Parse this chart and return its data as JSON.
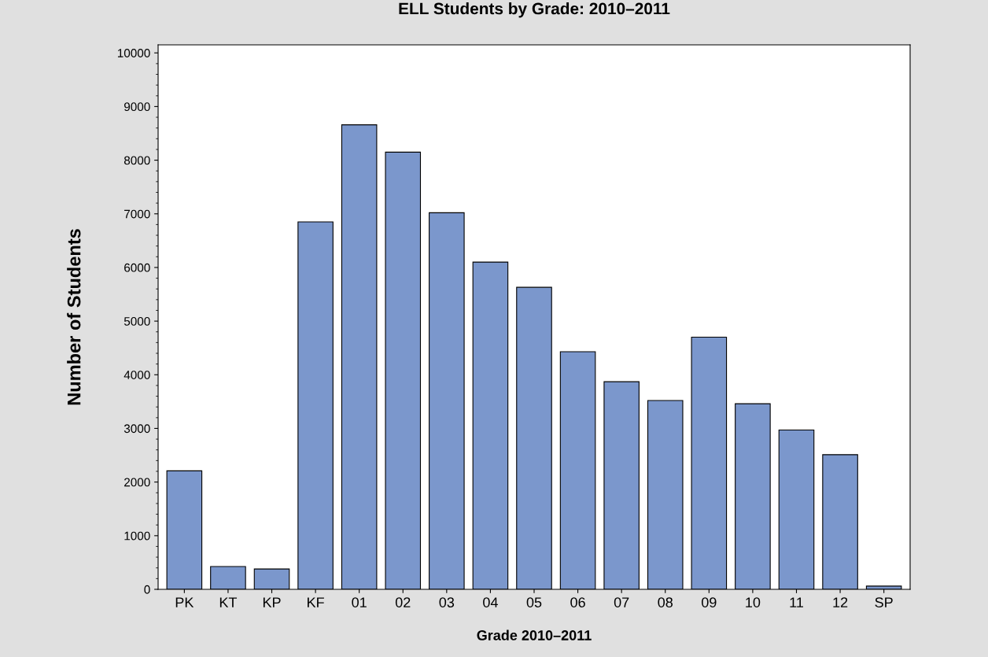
{
  "chart_data": {
    "type": "bar",
    "title": "ELL Students by Grade: 2010–2011",
    "xlabel": "Grade 2010–2011",
    "ylabel": "Number of Students",
    "categories": [
      "PK",
      "KT",
      "KP",
      "KF",
      "01",
      "02",
      "03",
      "04",
      "05",
      "06",
      "07",
      "08",
      "09",
      "10",
      "11",
      "12",
      "SP"
    ],
    "values": [
      2210,
      425,
      380,
      6850,
      8660,
      8150,
      7020,
      6100,
      5630,
      4430,
      3870,
      3520,
      4700,
      3460,
      2970,
      2510,
      60
    ],
    "color": "#7b97cc",
    "ylim": [
      0,
      10150
    ],
    "yticks": [
      0,
      1000,
      2000,
      3000,
      4000,
      5000,
      6000,
      7000,
      8000,
      9000,
      10000
    ],
    "grid": false,
    "legend": false
  }
}
